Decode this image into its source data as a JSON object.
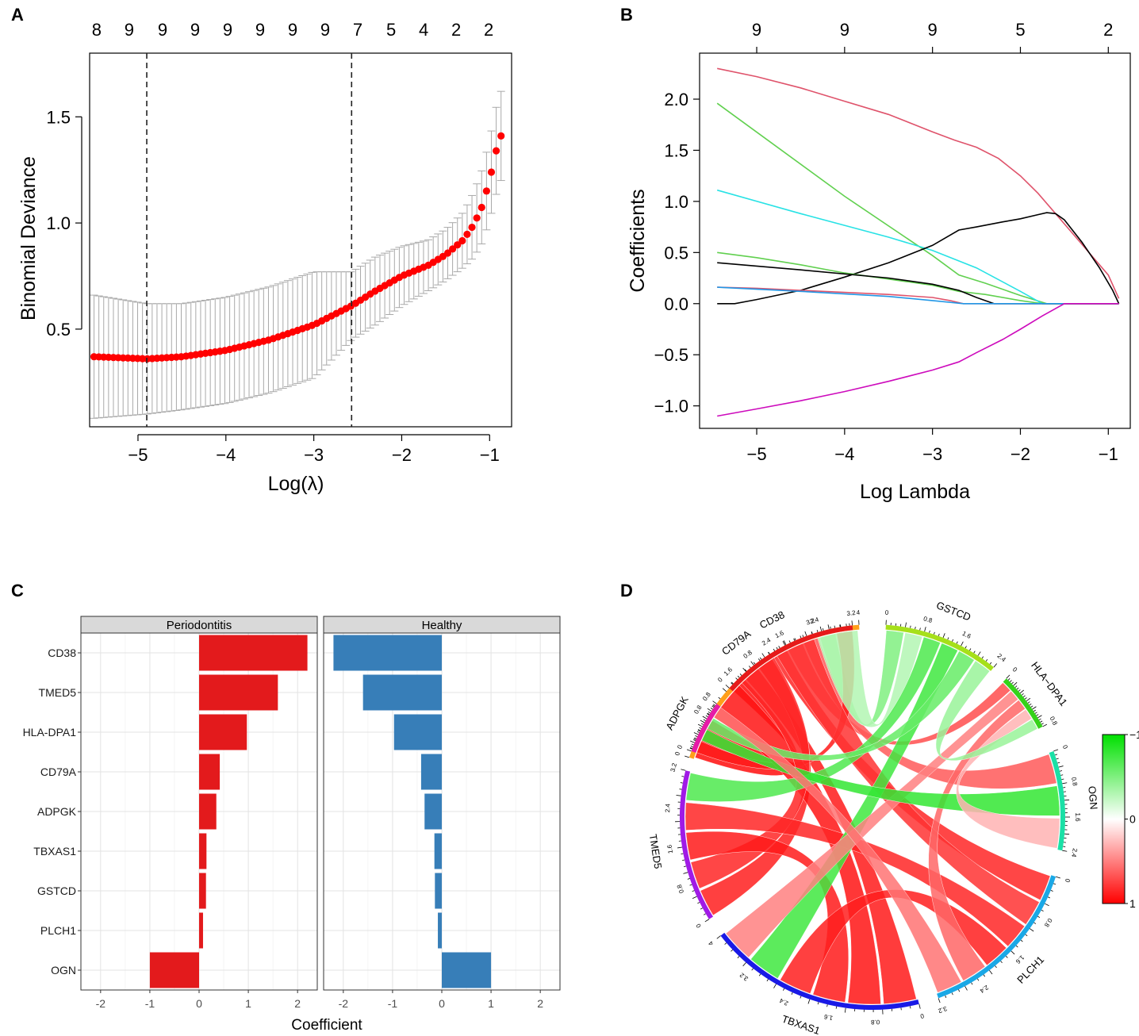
{
  "panel_labels": [
    "A",
    "B",
    "C",
    "D"
  ],
  "chart_data": [
    {
      "id": "A",
      "type": "scatter",
      "xlabel": "Log(λ)",
      "ylabel": "Binomial Deviance",
      "xlim": [
        -5.55,
        -0.75
      ],
      "ylim": [
        0.04,
        1.8
      ],
      "xticks": [
        -5,
        -4,
        -3,
        -2,
        -1
      ],
      "xtick_labels": [
        "−5",
        "−4",
        "−3",
        "−2",
        "−1"
      ],
      "yticks": [
        0.5,
        1.0,
        1.5
      ],
      "ytick_labels": [
        "0.5",
        "1.0",
        "1.5"
      ],
      "top_axis_labels": [
        "8",
        "9",
        "9",
        "9",
        "9",
        "9",
        "9",
        "9",
        "7",
        "5",
        "4",
        "2",
        "2"
      ],
      "top_axis_x": [
        -5.47,
        -5.1,
        -4.72,
        -4.35,
        -3.98,
        -3.61,
        -3.24,
        -2.87,
        -2.5,
        -2.12,
        -1.75,
        -1.38,
        -1.01
      ],
      "vlines": [
        -4.9,
        -2.57
      ],
      "point_color": "#ff0000",
      "errorbar_color": "#a9a9a9",
      "curve_knots": {
        "x": [
          -5.5,
          -4.9,
          -4.5,
          -4.0,
          -3.5,
          -3.0,
          -2.57,
          -2.3,
          -2.0,
          -1.7,
          -1.5,
          -1.3,
          -1.2,
          -1.1,
          -1.0,
          -0.95,
          -0.9,
          -0.87
        ],
        "mean": [
          0.37,
          0.36,
          0.37,
          0.4,
          0.45,
          0.52,
          0.61,
          0.68,
          0.75,
          0.8,
          0.85,
          0.92,
          0.98,
          1.06,
          1.2,
          1.3,
          1.38,
          1.41
        ],
        "err": [
          0.29,
          0.26,
          0.25,
          0.25,
          0.25,
          0.25,
          0.16,
          0.16,
          0.14,
          0.12,
          0.12,
          0.13,
          0.15,
          0.17,
          0.19,
          0.2,
          0.21,
          0.21
        ]
      },
      "n_points": 85
    },
    {
      "id": "B",
      "type": "line",
      "xlabel": "Log Lambda",
      "ylabel": "Coefficients",
      "xlim": [
        -5.65,
        -0.75
      ],
      "ylim": [
        -1.22,
        2.45
      ],
      "xticks": [
        -5,
        -4,
        -3,
        -2,
        -1
      ],
      "xtick_labels": [
        "−5",
        "−4",
        "−3",
        "−2",
        "−1"
      ],
      "yticks": [
        -1.0,
        -0.5,
        0.0,
        0.5,
        1.0,
        1.5,
        2.0
      ],
      "ytick_labels": [
        "−1.0",
        "−0.5",
        "0.0",
        "0.5",
        "1.0",
        "1.5",
        "2.0"
      ],
      "top_axis_ticks": [
        -5,
        -4,
        -3,
        -2,
        -1
      ],
      "top_axis_labels": [
        "9",
        "9",
        "9",
        "5",
        "2"
      ],
      "series": [
        {
          "color": "#df536b",
          "x": [
            -5.45,
            -5.0,
            -4.5,
            -4.0,
            -3.5,
            -3.0,
            -2.75,
            -2.5,
            -2.25,
            -2.0,
            -1.8,
            -1.6,
            -1.4,
            -1.2,
            -1.0,
            -0.88
          ],
          "y": [
            2.3,
            2.22,
            2.11,
            1.98,
            1.85,
            1.68,
            1.6,
            1.53,
            1.42,
            1.25,
            1.08,
            0.88,
            0.68,
            0.48,
            0.28,
            0.05
          ]
        },
        {
          "color": "#61d04f",
          "x": [
            -5.45,
            -4.0,
            -3.0,
            -2.7,
            -2.4,
            -2.0,
            -1.7,
            -1.5,
            -0.88
          ],
          "y": [
            1.96,
            1.05,
            0.47,
            0.28,
            0.2,
            0.08,
            0.0,
            0.0,
            0.0
          ]
        },
        {
          "color": "#28e2e5",
          "x": [
            -5.45,
            -4.5,
            -3.5,
            -3.0,
            -2.5,
            -2.0,
            -1.75,
            -0.88
          ],
          "y": [
            1.11,
            0.88,
            0.65,
            0.52,
            0.35,
            0.12,
            0.0,
            0.0
          ]
        },
        {
          "color": "#000000",
          "x": [
            -5.45,
            -5.25,
            -5.0,
            -4.5,
            -4.0,
            -3.5,
            -3.0,
            -2.7,
            -2.5,
            -2.2,
            -2.0,
            -1.8,
            -1.7,
            -1.6,
            -1.5,
            -1.3,
            -1.1,
            -0.95,
            -0.88
          ],
          "y": [
            0.0,
            0.0,
            0.04,
            0.13,
            0.26,
            0.4,
            0.57,
            0.72,
            0.75,
            0.8,
            0.83,
            0.87,
            0.89,
            0.88,
            0.82,
            0.6,
            0.35,
            0.13,
            0.0
          ]
        },
        {
          "color": "#61d04f",
          "x": [
            -5.45,
            -5.0,
            -4.5,
            -4.0,
            -3.5,
            -3.0,
            -2.7,
            -2.4,
            -2.0,
            -1.75,
            -0.88
          ],
          "y": [
            0.5,
            0.45,
            0.38,
            0.3,
            0.24,
            0.18,
            0.12,
            0.09,
            0.03,
            0.0,
            0.0
          ]
        },
        {
          "color": "#000000",
          "x": [
            -5.45,
            -4.5,
            -3.5,
            -3.0,
            -2.7,
            -2.5,
            -2.3,
            -0.88
          ],
          "y": [
            0.4,
            0.33,
            0.25,
            0.19,
            0.13,
            0.06,
            0.0,
            0.0
          ]
        },
        {
          "color": "#df536b",
          "x": [
            -5.45,
            -5.0,
            -4.5,
            -4.0,
            -3.5,
            -3.0,
            -2.8,
            -2.65,
            -0.88
          ],
          "y": [
            0.16,
            0.15,
            0.13,
            0.11,
            0.09,
            0.06,
            0.03,
            0.0,
            0.0
          ]
        },
        {
          "color": "#2297e6",
          "x": [
            -5.45,
            -4.5,
            -3.5,
            -3.0,
            -2.65,
            -0.88
          ],
          "y": [
            0.16,
            0.12,
            0.07,
            0.03,
            0.0,
            0.0
          ]
        },
        {
          "color": "#cd0bbc",
          "x": [
            -5.45,
            -5.0,
            -4.5,
            -4.0,
            -3.5,
            -3.0,
            -2.7,
            -2.5,
            -2.2,
            -2.0,
            -1.75,
            -1.5,
            -0.88
          ],
          "y": [
            -1.1,
            -1.03,
            -0.95,
            -0.86,
            -0.76,
            -0.65,
            -0.57,
            -0.48,
            -0.35,
            -0.25,
            -0.12,
            0.0,
            0.0
          ]
        }
      ]
    },
    {
      "id": "C",
      "type": "bar",
      "orientation": "horizontal",
      "xlabel": "Coefficient",
      "categories": [
        "CD38",
        "TMED5",
        "HLA-DPA1",
        "CD79A",
        "ADPGK",
        "TBXAS1",
        "GSTCD",
        "PLCH1",
        "OGN"
      ],
      "xlim": [
        -2.4,
        2.4
      ],
      "xticks": [
        -2,
        -1,
        0,
        1,
        2
      ],
      "xtick_labels": [
        "-2",
        "-1",
        "0",
        "1",
        "2"
      ],
      "series": [
        {
          "name": "Periodontitis",
          "color": "#e31a1c",
          "values": [
            2.2,
            1.6,
            0.97,
            0.42,
            0.35,
            0.15,
            0.14,
            0.08,
            -1.0
          ]
        },
        {
          "name": "Healthy",
          "color": "#377eb8",
          "values": [
            -2.2,
            -1.6,
            -0.97,
            -0.42,
            -0.35,
            -0.15,
            -0.14,
            -0.08,
            1.0
          ]
        }
      ]
    },
    {
      "id": "D",
      "type": "heatmap",
      "subtype": "chord",
      "legend": {
        "labels": [
          "−1",
          "0",
          "1"
        ],
        "low_color": "#00e000",
        "mid_color": "#ffffff",
        "high_color": "#ff0000"
      },
      "sectors": [
        {
          "name": "CD79A",
          "color": "#ff9f1a",
          "ticks": [
            "0",
            "0.8",
            "1.6",
            "2.4",
            "3.2",
            "4"
          ]
        },
        {
          "name": "GSTCD",
          "color": "#a6e01a",
          "ticks": [
            "0",
            "0.8",
            "1.6",
            "2.4"
          ]
        },
        {
          "name": "HLA−DPA1",
          "color": "#35d21a",
          "ticks": [
            "0",
            "0.8"
          ]
        },
        {
          "name": "OGN",
          "color": "#1ae0a6",
          "ticks": [
            "0",
            "0.8",
            "1.6",
            "2.4"
          ]
        },
        {
          "name": "PLCH1",
          "color": "#1aa8e6",
          "ticks": [
            "0",
            "0.8",
            "1.6",
            "2.4",
            "3.2"
          ]
        },
        {
          "name": "TBXAS1",
          "color": "#1a1ae6",
          "ticks": [
            "0",
            "0.8",
            "1.6",
            "2.4",
            "3.2",
            "4"
          ]
        },
        {
          "name": "TMED5",
          "color": "#a01ae6",
          "ticks": [
            "0",
            "0.8",
            "1.6",
            "2.4",
            "3.2"
          ]
        },
        {
          "name": "ADPGK",
          "color": "#e61aa8",
          "ticks": [
            "0",
            "0.8"
          ]
        },
        {
          "name": "CD38",
          "color": "#e61a1a",
          "ticks": [
            "0",
            "0.8",
            "1.6",
            "2.4",
            "3.2"
          ]
        }
      ],
      "links": [
        {
          "from": "CD38",
          "to": "CD79A",
          "value": 0.95
        },
        {
          "from": "CD38",
          "to": "TBXAS1",
          "value": 0.9
        },
        {
          "from": "CD38",
          "to": "TMED5",
          "value": 0.88
        },
        {
          "from": "CD38",
          "to": "PLCH1",
          "value": 0.85
        },
        {
          "from": "CD38",
          "to": "HLA−DPA1",
          "value": 0.7
        },
        {
          "from": "CD38",
          "to": "OGN",
          "value": 0.65
        },
        {
          "from": "CD38",
          "to": "GSTCD",
          "value": -0.5
        },
        {
          "from": "CD38",
          "to": "ADPGK",
          "value": 0.9
        },
        {
          "from": "CD79A",
          "to": "TBXAS1",
          "value": 0.92
        },
        {
          "from": "CD79A",
          "to": "TMED5",
          "value": 0.85
        },
        {
          "from": "CD79A",
          "to": "PLCH1",
          "value": 0.8
        },
        {
          "from": "CD79A",
          "to": "GSTCD",
          "value": -0.3
        },
        {
          "from": "TMED5",
          "to": "TBXAS1",
          "value": 0.9
        },
        {
          "from": "TMED5",
          "to": "PLCH1",
          "value": 0.85
        },
        {
          "from": "TMED5",
          "to": "GSTCD",
          "value": -0.7
        },
        {
          "from": "TBXAS1",
          "to": "PLCH1",
          "value": 0.88
        },
        {
          "from": "TBXAS1",
          "to": "GSTCD",
          "value": -0.75
        },
        {
          "from": "TBXAS1",
          "to": "HLA−DPA1",
          "value": 0.5
        },
        {
          "from": "PLCH1",
          "to": "HLA−DPA1",
          "value": 0.6
        },
        {
          "from": "OGN",
          "to": "ADPGK",
          "value": -0.8
        },
        {
          "from": "OGN",
          "to": "HLA−DPA1",
          "value": 0.3
        },
        {
          "from": "ADPGK",
          "to": "GSTCD",
          "value": -0.6
        },
        {
          "from": "ADPGK",
          "to": "PLCH1",
          "value": 0.55
        },
        {
          "from": "GSTCD",
          "to": "HLA−DPA1",
          "value": -0.4
        }
      ]
    }
  ]
}
